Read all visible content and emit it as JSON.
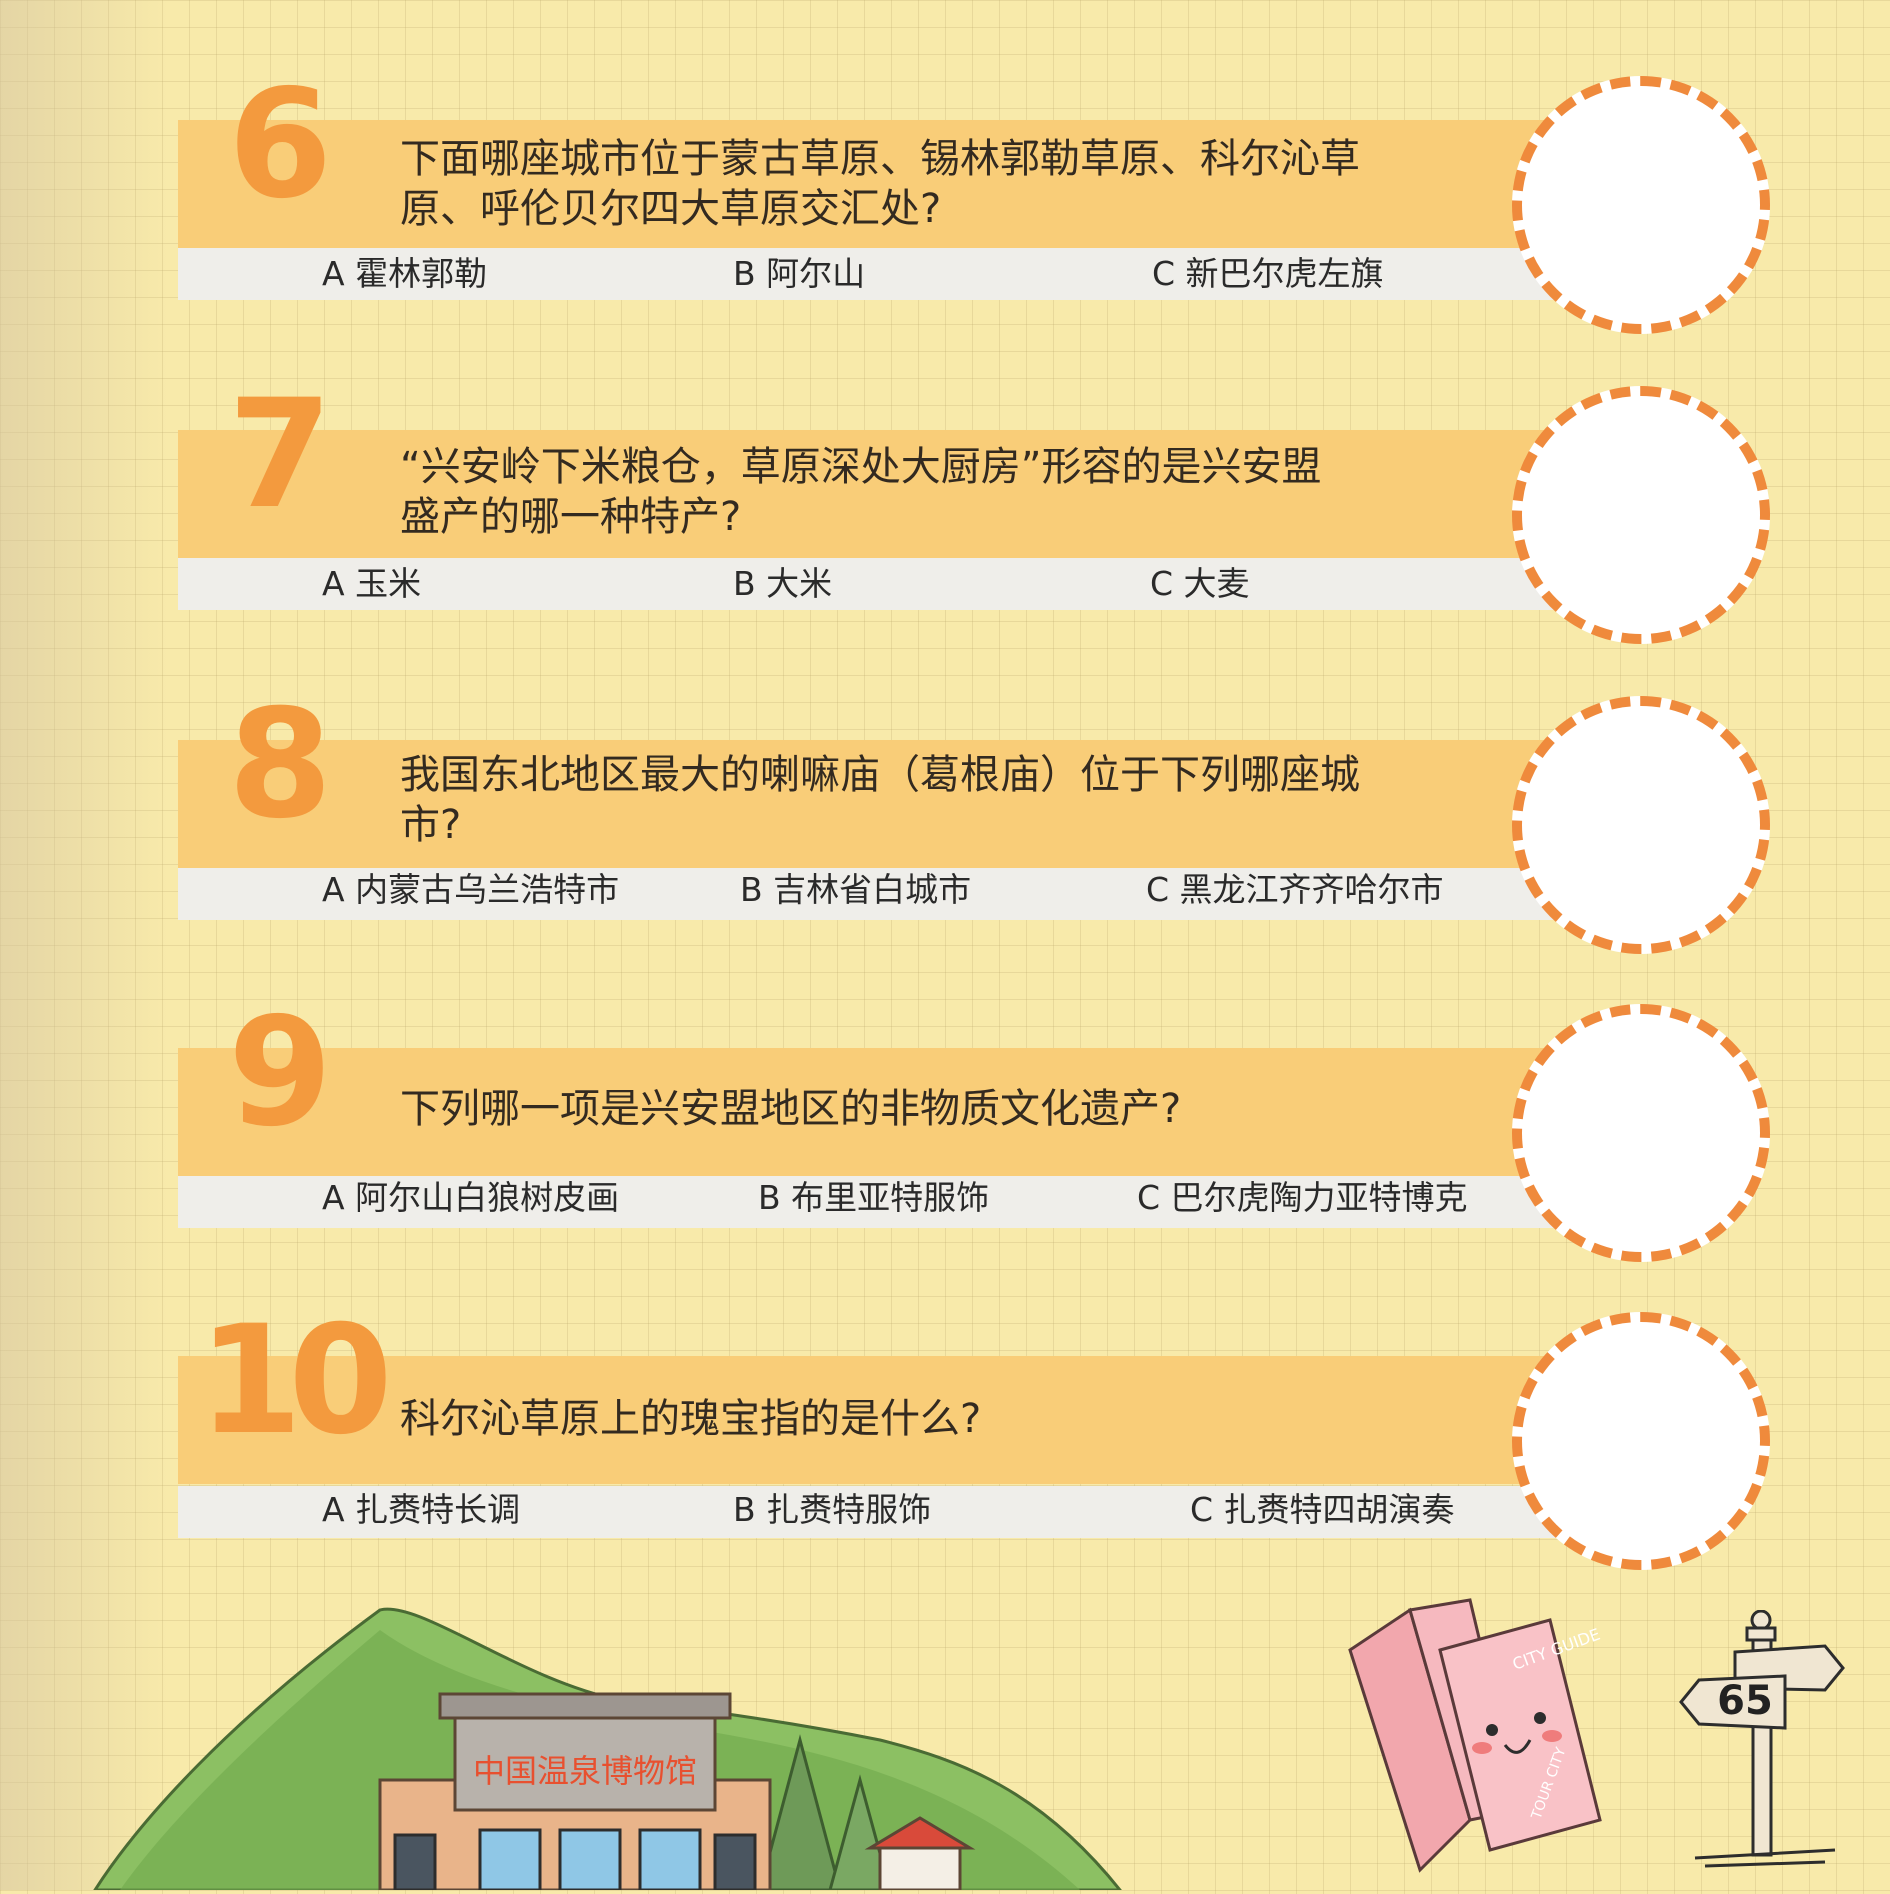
{
  "questions": [
    {
      "number": "6",
      "text": "下面哪座城市位于蒙古草原、锡林郭勒草原、科尔沁草原、呼伦贝尔四大草原交汇处?",
      "options": [
        "A  霍林郭勒",
        "B  阿尔山",
        "C  新巴尔虎左旗"
      ]
    },
    {
      "number": "7",
      "text": "“兴安岭下米粮仓，草原深处大厨房”形容的是兴安盟盛产的哪一种特产?",
      "options": [
        "A 玉米",
        "B  大米",
        "C 大麦"
      ]
    },
    {
      "number": "8",
      "text": "我国东北地区最大的喇嘛庙（葛根庙）位于下列哪座城市?",
      "options": [
        "A 内蒙古乌兰浩特市",
        "B  吉林省白城市",
        "C 黑龙江齐齐哈尔市"
      ]
    },
    {
      "number": "9",
      "text": "下列哪一项是兴安盟地区的非物质文化遗产?",
      "options": [
        "A  阿尔山白狼树皮画",
        "B  布里亚特服饰",
        "C  巴尔虎陶力亚特博克"
      ]
    },
    {
      "number": "10",
      "text": "科尔沁草原上的瑰宝指的是什么?",
      "options": [
        "A  扎赉特长调",
        "B  扎赉特服饰",
        "C  扎赉特四胡演奏"
      ]
    }
  ],
  "illustration": {
    "building_sign": "中国温泉博物馆",
    "guide_cover": "CITY GUIDE",
    "guide_back": "TOUR CITY"
  },
  "page_number": "65",
  "colors": {
    "accent": "#f39a3e",
    "band": "#f9cd78",
    "option_band": "#efeeea",
    "circle_border": "#ef8a3c",
    "background": "#f8eaaa"
  }
}
